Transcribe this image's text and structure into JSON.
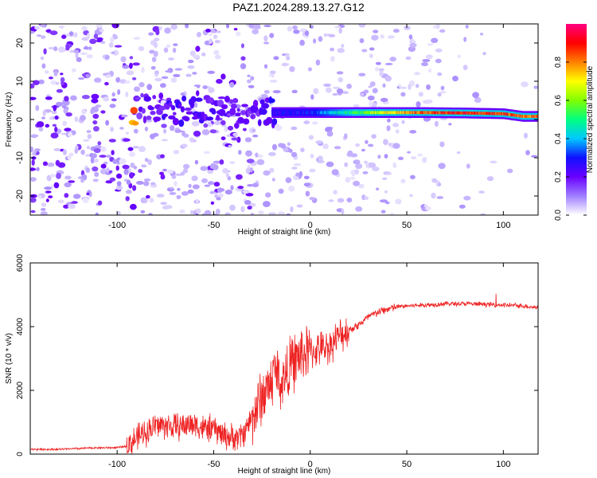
{
  "title": "PAZ1.2024.289.13.27.G12",
  "chart_data": [
    {
      "type": "heatmap",
      "xlabel": "Height of straight line (km)",
      "ylabel": "Frequency (Hz)",
      "xlim": [
        -145,
        118
      ],
      "ylim": [
        -25,
        25
      ],
      "xticks": [
        -100,
        -50,
        0,
        50,
        100
      ],
      "yticks": [
        -20,
        -10,
        0,
        10,
        20
      ],
      "colorbar": {
        "label": "Normalized spectral amplitude",
        "range": [
          0,
          1
        ],
        "ticks": [
          0.0,
          0.2,
          0.4,
          0.6,
          0.8
        ],
        "colors": [
          "#ffffff",
          "#9f7fff",
          "#6a00ff",
          "#1010ff",
          "#00c8ff",
          "#00ff80",
          "#80ff00",
          "#ffff00",
          "#ff8000",
          "#ff0000",
          "#ff0080"
        ]
      },
      "ridge": [
        {
          "x": -90,
          "y": 3,
          "amp": 0.18
        },
        {
          "x": -80,
          "y": 3,
          "amp": 0.2
        },
        {
          "x": -70,
          "y": 2.5,
          "amp": 0.22
        },
        {
          "x": -60,
          "y": 2.5,
          "amp": 0.22
        },
        {
          "x": -50,
          "y": 2.5,
          "amp": 0.2
        },
        {
          "x": -40,
          "y": 2,
          "amp": 0.18
        },
        {
          "x": -30,
          "y": 1,
          "amp": 0.18
        },
        {
          "x": -20,
          "y": 1.8,
          "amp": 0.25
        },
        {
          "x": 0,
          "y": 1.8,
          "amp": 0.3
        },
        {
          "x": 20,
          "y": 1.8,
          "amp": 0.5
        },
        {
          "x": 40,
          "y": 1.8,
          "amp": 0.7
        },
        {
          "x": 60,
          "y": 1.8,
          "amp": 0.85
        },
        {
          "x": 80,
          "y": 1.7,
          "amp": 0.88
        },
        {
          "x": 100,
          "y": 1.5,
          "amp": 0.85
        },
        {
          "x": 110,
          "y": 0.8,
          "amp": 0.8
        },
        {
          "x": 118,
          "y": 0.8,
          "amp": 0.8
        }
      ]
    },
    {
      "type": "line",
      "xlabel": "Height of straight line (km)",
      "ylabel": "SNR (10 * v/v)",
      "xlim": [
        -145,
        118
      ],
      "ylim": [
        0,
        6000
      ],
      "xticks": [
        -100,
        -50,
        0,
        50,
        100
      ],
      "yticks": [
        0,
        2000,
        4000,
        6000
      ],
      "series": [
        {
          "color": "#ee2222",
          "x": [
            -145,
            -130,
            -110,
            -100,
            -95,
            -90,
            -85,
            -80,
            -75,
            -70,
            -65,
            -60,
            -55,
            -50,
            -45,
            -40,
            -35,
            -30,
            -25,
            -20,
            -18,
            -15,
            -10,
            -5,
            0,
            5,
            10,
            15,
            20,
            25,
            30,
            35,
            40,
            45,
            50,
            60,
            70,
            80,
            90,
            100,
            110,
            118
          ],
          "y": [
            150,
            150,
            200,
            200,
            250,
            500,
            700,
            900,
            900,
            850,
            900,
            950,
            800,
            800,
            600,
            500,
            600,
            1200,
            1800,
            2300,
            2700,
            2200,
            2800,
            3100,
            3200,
            3300,
            3400,
            3700,
            3900,
            4050,
            4300,
            4450,
            4550,
            4620,
            4650,
            4680,
            4720,
            4720,
            4700,
            4680,
            4650,
            4600
          ]
        }
      ]
    }
  ]
}
